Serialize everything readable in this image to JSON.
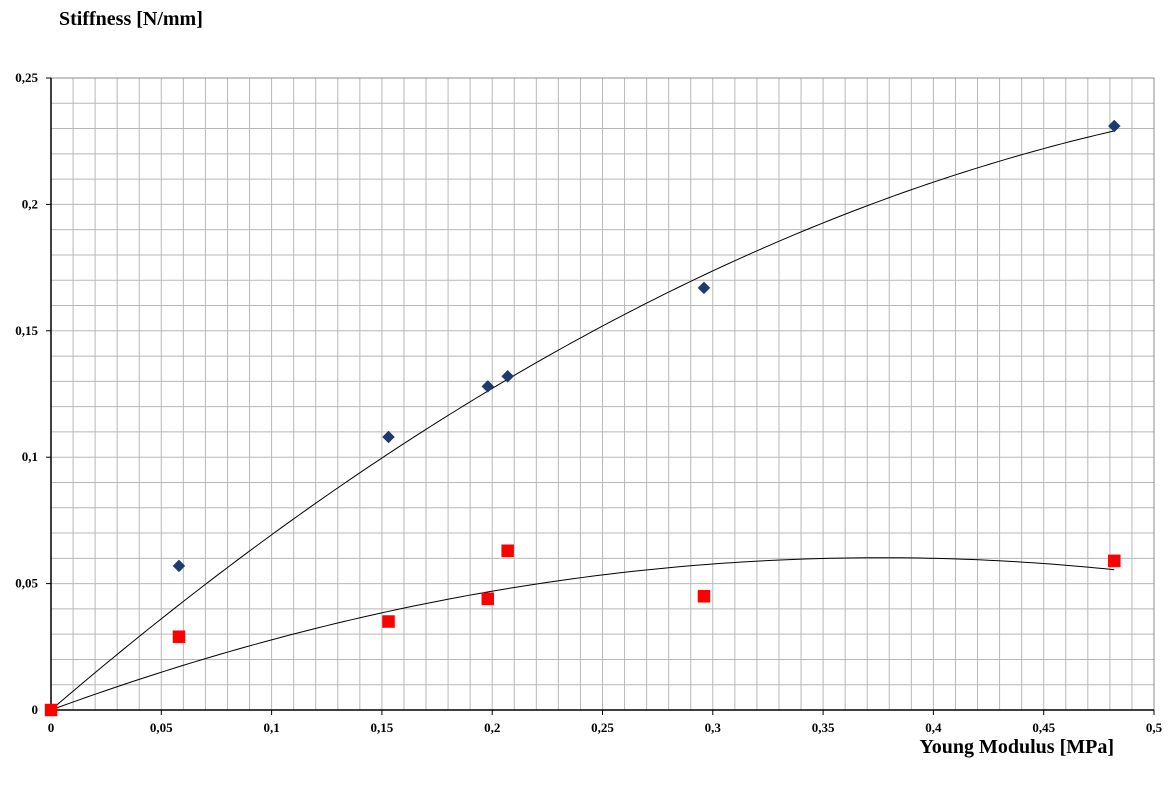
{
  "chart_data": {
    "type": "scatter",
    "ylabel": "Stiffness [N/mm]",
    "xlabel": "Young Modulus [MPa]",
    "xlim": [
      0,
      0.5
    ],
    "ylim": [
      0,
      0.25
    ],
    "x_ticks": [
      "0",
      "0,05",
      "0,1",
      "0,15",
      "0,2",
      "0,25",
      "0,3",
      "0,35",
      "0,4",
      "0,45",
      "0,5"
    ],
    "y_ticks": [
      "0",
      "0,05",
      "0,1",
      "0,15",
      "0,2",
      "0,25"
    ],
    "grid": true,
    "legend": "none",
    "series": [
      {
        "marker": "diamond",
        "color": "#1f3a6e",
        "x": [
          0,
          0.058,
          0.153,
          0.198,
          0.207,
          0.296,
          0.482
        ],
        "y": [
          0,
          0.057,
          0.108,
          0.128,
          0.132,
          0.167,
          0.231
        ],
        "trendline": {
          "type": "polynomial",
          "coefficients": [
            0.0,
            0.75,
            -0.57
          ]
        }
      },
      {
        "marker": "square",
        "color": "#ff0000",
        "x": [
          0,
          0.058,
          0.153,
          0.198,
          0.207,
          0.296,
          0.482
        ],
        "y": [
          0,
          0.029,
          0.035,
          0.044,
          0.063,
          0.045,
          0.059
        ],
        "trendline": {
          "type": "polynomial",
          "coefficients": [
            0.0,
            0.32,
            -0.425
          ]
        }
      }
    ]
  }
}
